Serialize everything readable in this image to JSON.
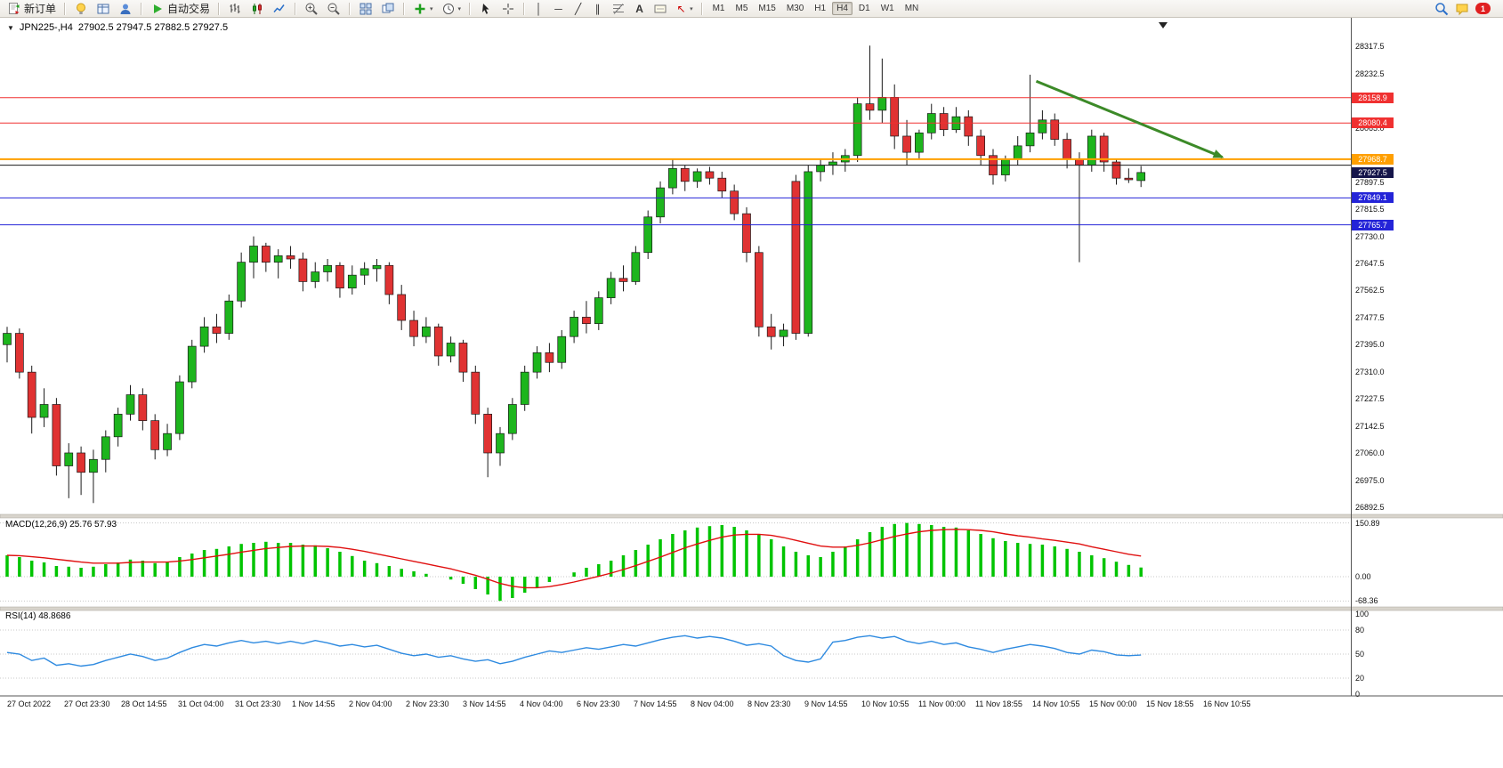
{
  "toolbar": {
    "new_order_label": "新订单",
    "auto_trading_label": "自动交易",
    "timeframes": [
      "M1",
      "M5",
      "M15",
      "M30",
      "H1",
      "H4",
      "D1",
      "W1",
      "MN"
    ],
    "active_timeframe": "H4",
    "notification_count": "1",
    "glyphs": {
      "dropdown": "▼",
      "vertical_line": "│",
      "horizontal_line": "─",
      "trendline": "╱",
      "channel": "∥",
      "text": "A",
      "arrow": "↖",
      "caret": "▾"
    }
  },
  "chart": {
    "title_symbol": "JPN225-,H4",
    "title_ohlc": "27902.5 27947.5 27882.5 27927.5"
  },
  "chart_data": [
    {
      "type": "candlestick",
      "title": "JPN225-,H4",
      "timeframe": "H4",
      "ylim": [
        26870,
        28395
      ],
      "colors": {
        "up": "#1db51d",
        "down": "#e03232",
        "wick": "#1a1a1a"
      },
      "ohlc": [
        [
          27395,
          27450,
          27340,
          27430
        ],
        [
          27430,
          27445,
          27290,
          27310
        ],
        [
          27310,
          27330,
          27120,
          27170
        ],
        [
          27170,
          27260,
          27140,
          27210
        ],
        [
          27210,
          27230,
          26990,
          27020
        ],
        [
          27020,
          27090,
          26920,
          27060
        ],
        [
          27060,
          27080,
          26930,
          27000
        ],
        [
          27000,
          27070,
          26905,
          27040
        ],
        [
          27040,
          27130,
          27000,
          27110
        ],
        [
          27110,
          27200,
          27080,
          27180
        ],
        [
          27180,
          27270,
          27160,
          27240
        ],
        [
          27240,
          27260,
          27130,
          27160
        ],
        [
          27160,
          27180,
          27040,
          27070
        ],
        [
          27070,
          27150,
          27050,
          27120
        ],
        [
          27120,
          27300,
          27100,
          27280
        ],
        [
          27280,
          27410,
          27260,
          27390
        ],
        [
          27390,
          27480,
          27370,
          27450
        ],
        [
          27450,
          27490,
          27400,
          27430
        ],
        [
          27430,
          27550,
          27410,
          27530
        ],
        [
          27530,
          27680,
          27510,
          27650
        ],
        [
          27650,
          27730,
          27600,
          27700
        ],
        [
          27700,
          27710,
          27620,
          27650
        ],
        [
          27650,
          27690,
          27600,
          27670
        ],
        [
          27670,
          27700,
          27630,
          27660
        ],
        [
          27660,
          27680,
          27560,
          27590
        ],
        [
          27590,
          27650,
          27570,
          27620
        ],
        [
          27620,
          27660,
          27590,
          27640
        ],
        [
          27640,
          27650,
          27540,
          27570
        ],
        [
          27570,
          27640,
          27550,
          27610
        ],
        [
          27610,
          27650,
          27580,
          27630
        ],
        [
          27630,
          27660,
          27590,
          27640
        ],
        [
          27640,
          27650,
          27520,
          27550
        ],
        [
          27550,
          27580,
          27440,
          27470
        ],
        [
          27470,
          27500,
          27390,
          27420
        ],
        [
          27420,
          27480,
          27400,
          27450
        ],
        [
          27450,
          27460,
          27330,
          27360
        ],
        [
          27360,
          27420,
          27340,
          27400
        ],
        [
          27400,
          27410,
          27280,
          27310
        ],
        [
          27310,
          27330,
          27150,
          27180
        ],
        [
          27180,
          27200,
          26985,
          27060
        ],
        [
          27060,
          27140,
          27020,
          27120
        ],
        [
          27120,
          27230,
          27100,
          27210
        ],
        [
          27210,
          27330,
          27190,
          27310
        ],
        [
          27310,
          27390,
          27290,
          27370
        ],
        [
          27370,
          27400,
          27310,
          27340
        ],
        [
          27340,
          27440,
          27320,
          27420
        ],
        [
          27420,
          27500,
          27400,
          27480
        ],
        [
          27480,
          27530,
          27430,
          27460
        ],
        [
          27460,
          27560,
          27440,
          27540
        ],
        [
          27540,
          27620,
          27520,
          27600
        ],
        [
          27600,
          27640,
          27560,
          27590
        ],
        [
          27590,
          27700,
          27580,
          27680
        ],
        [
          27680,
          27810,
          27660,
          27790
        ],
        [
          27790,
          27900,
          27770,
          27880
        ],
        [
          27880,
          27970,
          27860,
          27940
        ],
        [
          27940,
          27950,
          27870,
          27900
        ],
        [
          27900,
          27940,
          27880,
          27930
        ],
        [
          27930,
          27945,
          27890,
          27910
        ],
        [
          27910,
          27930,
          27850,
          27870
        ],
        [
          27870,
          27890,
          27780,
          27800
        ],
        [
          27800,
          27820,
          27650,
          27680
        ],
        [
          27680,
          27700,
          27420,
          27450
        ],
        [
          27450,
          27490,
          27380,
          27420
        ],
        [
          27420,
          27460,
          27390,
          27440
        ],
        [
          27900,
          27920,
          27410,
          27430
        ],
        [
          27430,
          27950,
          27420,
          27930
        ],
        [
          27930,
          27970,
          27900,
          27950
        ],
        [
          27950,
          27990,
          27920,
          27960
        ],
        [
          27960,
          28000,
          27930,
          27980
        ],
        [
          27980,
          28160,
          27960,
          28140
        ],
        [
          28140,
          28320,
          28090,
          28120
        ],
        [
          28120,
          28280,
          28080,
          28160
        ],
        [
          28160,
          28200,
          28000,
          28040
        ],
        [
          28040,
          28090,
          27950,
          27990
        ],
        [
          27990,
          28060,
          27970,
          28050
        ],
        [
          28050,
          28140,
          28030,
          28110
        ],
        [
          28110,
          28130,
          28040,
          28060
        ],
        [
          28060,
          28130,
          28050,
          28100
        ],
        [
          28100,
          28120,
          28010,
          28040
        ],
        [
          28040,
          28060,
          27950,
          27980
        ],
        [
          27980,
          28000,
          27890,
          27920
        ],
        [
          27920,
          27980,
          27900,
          27970
        ],
        [
          27970,
          28040,
          27950,
          28010
        ],
        [
          28010,
          28230,
          27990,
          28050
        ],
        [
          28050,
          28120,
          28030,
          28090
        ],
        [
          28090,
          28110,
          28010,
          28030
        ],
        [
          28030,
          28050,
          27940,
          27970
        ],
        [
          27970,
          27990,
          27650,
          27950
        ],
        [
          27950,
          28060,
          27930,
          28040
        ],
        [
          28040,
          28050,
          27930,
          27960
        ],
        [
          27960,
          27970,
          27890,
          27910
        ],
        [
          27910,
          27940,
          27895,
          27905
        ],
        [
          27902.5,
          27947.5,
          27882.5,
          27927.5
        ]
      ],
      "y_axis_labels": [
        "28317.5",
        "28232.5",
        "28065.0",
        "27897.5",
        "27815.5",
        "27730.0",
        "27647.5",
        "27562.5",
        "27477.5",
        "27395.0",
        "27310.0",
        "27227.5",
        "27142.5",
        "27060.0",
        "26975.0",
        "26892.5"
      ],
      "x_axis_labels": [
        "27 Oct 2022",
        "27 Oct 23:30",
        "28 Oct 14:55",
        "31 Oct 04:00",
        "31 Oct 23:30",
        "1 Nov 14:55",
        "2 Nov 04:00",
        "2 Nov 23:30",
        "3 Nov 14:55",
        "4 Nov 04:00",
        "6 Nov 23:30",
        "7 Nov 14:55",
        "8 Nov 04:00",
        "8 Nov 23:30",
        "9 Nov 14:55",
        "10 Nov 10:55",
        "11 Nov 00:00",
        "11 Nov 18:55",
        "14 Nov 10:55",
        "15 Nov 00:00",
        "15 Nov 18:55",
        "16 Nov 10:55"
      ],
      "hlines": [
        {
          "value": 28158.9,
          "color": "#f03030",
          "width": 1,
          "label": true
        },
        {
          "value": 28080.4,
          "color": "#f03030",
          "width": 1,
          "label": true
        },
        {
          "value": 27968.7,
          "color": "#ff9f00",
          "width": 2,
          "label": true
        },
        {
          "value": 27950.0,
          "color": "#1a1a1a",
          "width": 1,
          "label": false
        },
        {
          "value": 27849.1,
          "color": "#2424d8",
          "width": 1,
          "label": true
        },
        {
          "value": 27765.7,
          "color": "#2424d8",
          "width": 1,
          "label": true
        }
      ],
      "current_price": {
        "value": 27927.5,
        "bg": "#15154a"
      },
      "trend_arrow": {
        "from": {
          "index": 83.5,
          "price": 28210
        },
        "to": {
          "index": 98.6,
          "price": 27975
        },
        "color": "#3c8a28"
      }
    },
    {
      "type": "bar",
      "name": "MACD",
      "label": "MACD(12,26,9)",
      "current_values": "25.76 57.93",
      "histogram": [
        60,
        55,
        45,
        40,
        30,
        28,
        25,
        28,
        35,
        40,
        48,
        45,
        38,
        42,
        55,
        65,
        75,
        78,
        85,
        92,
        95,
        98,
        95,
        95,
        90,
        88,
        80,
        70,
        58,
        45,
        38,
        30,
        22,
        15,
        8,
        0,
        -8,
        -20,
        -35,
        -50,
        -68,
        -60,
        -45,
        -30,
        -15,
        0,
        12,
        25,
        35,
        45,
        60,
        75,
        90,
        105,
        120,
        130,
        138,
        142,
        145,
        140,
        130,
        118,
        105,
        85,
        70,
        60,
        55,
        70,
        85,
        105,
        125,
        140,
        148,
        150.89,
        148,
        145,
        140,
        138,
        130,
        120,
        108,
        100,
        95,
        92,
        90,
        85,
        78,
        70,
        60,
        52,
        42,
        33,
        25.76
      ],
      "signal": [
        60,
        59,
        56,
        53,
        49,
        45,
        41,
        38,
        38,
        38,
        40,
        41,
        41,
        41,
        44,
        48,
        53,
        58,
        63,
        69,
        74,
        79,
        82,
        85,
        86,
        86,
        85,
        82,
        77,
        71,
        64,
        57,
        50,
        43,
        36,
        29,
        22,
        13,
        4,
        -7,
        -19,
        -27,
        -31,
        -31,
        -28,
        -22,
        -15,
        -7,
        1,
        10,
        20,
        31,
        43,
        55,
        68,
        81,
        92,
        102,
        111,
        117,
        119,
        119,
        116,
        110,
        102,
        94,
        86,
        83,
        83,
        88,
        95,
        104,
        113,
        120,
        126,
        130,
        132,
        133,
        132,
        130,
        126,
        120,
        115,
        111,
        106,
        102,
        97,
        92,
        84,
        77,
        70,
        63,
        57.93
      ],
      "y_axis_values": [
        150.89,
        0,
        -68.36
      ],
      "y_axis_labels": [
        "150.89",
        "0.00",
        "-68.36"
      ],
      "colors": {
        "histogram": "#00c400",
        "signal": "#e01010"
      }
    },
    {
      "type": "line",
      "name": "RSI",
      "label": "RSI(14)",
      "current_value": "48.8686",
      "values": [
        52,
        50,
        42,
        45,
        36,
        38,
        35,
        37,
        42,
        46,
        50,
        47,
        42,
        45,
        52,
        58,
        62,
        60,
        64,
        67,
        64,
        66,
        63,
        66,
        63,
        67,
        64,
        60,
        62,
        59,
        61,
        56,
        51,
        48,
        50,
        46,
        48,
        44,
        41,
        43,
        38,
        41,
        46,
        50,
        54,
        52,
        55,
        58,
        56,
        59,
        62,
        60,
        64,
        68,
        71,
        73,
        70,
        72,
        70,
        66,
        61,
        63,
        60,
        48,
        42,
        40,
        44,
        65,
        67,
        71,
        73,
        70,
        72,
        66,
        63,
        66,
        62,
        64,
        59,
        56,
        52,
        56,
        59,
        62,
        60,
        57,
        52,
        50,
        55,
        53,
        49,
        48,
        48.87
      ],
      "levels": [
        80,
        50,
        20
      ],
      "y_axis_labels": [
        "100",
        "80",
        "50",
        "20",
        "0"
      ],
      "ylim": [
        0,
        100
      ],
      "color": "#2e8ae0"
    }
  ]
}
